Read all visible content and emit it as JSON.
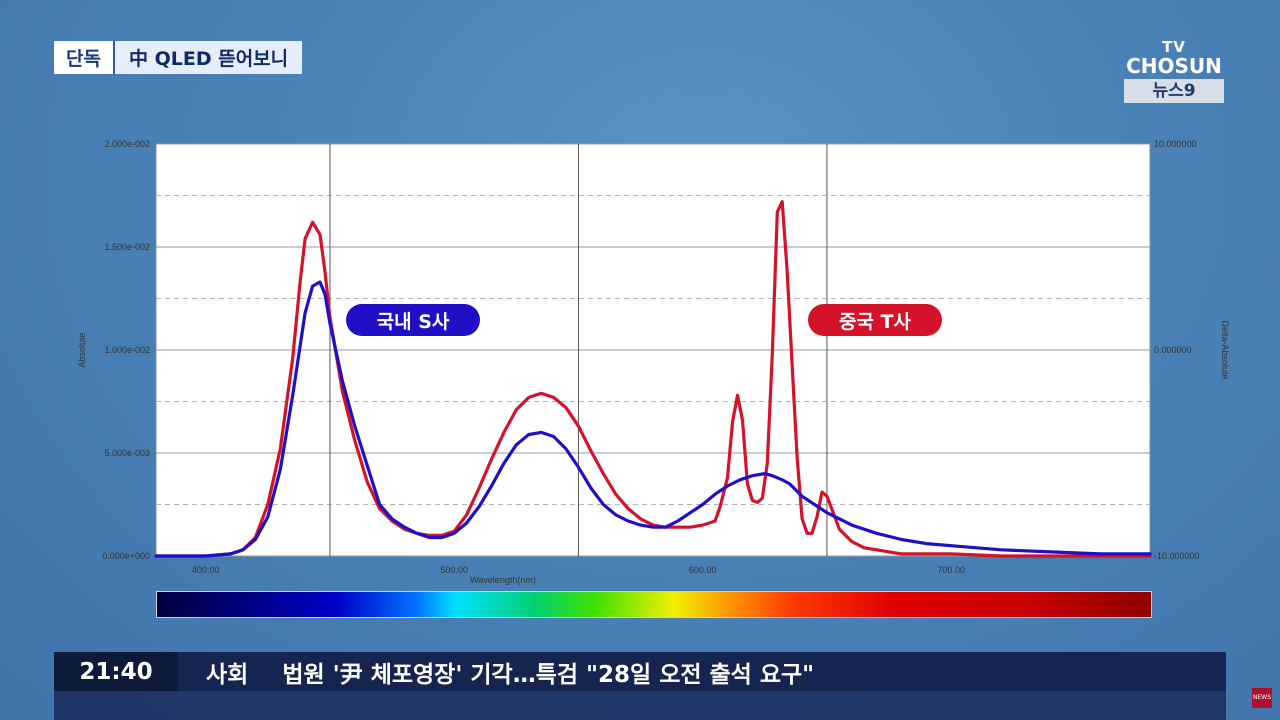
{
  "header": {
    "tag": "단독",
    "headline": "中 QLED 뜯어보니"
  },
  "logo": {
    "line1": "TV",
    "line2": "CHOSUN",
    "line3": "뉴스9"
  },
  "labels": {
    "korea": "국내 S사",
    "china": "중국 T사"
  },
  "colors": {
    "korea": "#1f10c8",
    "china": "#d4122a"
  },
  "ticker": {
    "time": "21:40",
    "category": "사회",
    "text": "법원 '尹 체포영장' 기각…특검 \"28일 오전 출석 요구\""
  },
  "corner_logo_text": "NEWS",
  "chart_data": {
    "type": "line",
    "xlabel": "Wavelength(nm)",
    "ylabel": "Absolute",
    "y2label": "Delta-Absolute",
    "xlim": [
      380,
      780
    ],
    "ylim": [
      0,
      0.02
    ],
    "y2lim": [
      -10,
      10
    ],
    "x_ticks": [
      400,
      500,
      600,
      700
    ],
    "x_tick_labels": [
      "400.00",
      "500.00",
      "600.00",
      "700.00"
    ],
    "y_ticks": [
      0,
      0.005,
      0.01,
      0.015,
      0.02
    ],
    "y_tick_labels": [
      "0.000e+000",
      "5.000e-003",
      "1.000e-002",
      "1.500e-002",
      "2.000e-002"
    ],
    "y2_ticks": [
      -10,
      0,
      10
    ],
    "y2_tick_labels": [
      "-10.000000",
      "0.000000",
      "10.000000"
    ],
    "grid": true,
    "series": [
      {
        "name": "국내 S사",
        "x": [
          380,
          400,
          410,
          415,
          420,
          425,
          430,
          435,
          440,
          443,
          446,
          448,
          450,
          455,
          460,
          465,
          470,
          475,
          480,
          485,
          490,
          495,
          500,
          505,
          510,
          515,
          520,
          525,
          530,
          535,
          540,
          545,
          550,
          555,
          560,
          565,
          570,
          575,
          580,
          585,
          590,
          595,
          600,
          605,
          610,
          615,
          620,
          625,
          628,
          632,
          635,
          640,
          645,
          650,
          660,
          670,
          680,
          690,
          700,
          720,
          740,
          760,
          780
        ],
        "y": [
          0,
          0,
          0.0001,
          0.0003,
          0.0008,
          0.0019,
          0.0042,
          0.0078,
          0.0118,
          0.0131,
          0.0133,
          0.0127,
          0.0113,
          0.0085,
          0.0063,
          0.0044,
          0.0025,
          0.0018,
          0.0014,
          0.0011,
          0.0009,
          0.0009,
          0.0011,
          0.0016,
          0.0024,
          0.0034,
          0.0045,
          0.0054,
          0.0059,
          0.006,
          0.0058,
          0.0052,
          0.0043,
          0.0033,
          0.0025,
          0.002,
          0.0017,
          0.0015,
          0.0014,
          0.0014,
          0.0017,
          0.0021,
          0.0025,
          0.003,
          0.0034,
          0.0037,
          0.0039,
          0.004,
          0.0039,
          0.0037,
          0.0035,
          0.0029,
          0.0025,
          0.0021,
          0.0015,
          0.0011,
          0.0008,
          0.0006,
          0.0005,
          0.0003,
          0.0002,
          0.0001,
          0.0001
        ]
      },
      {
        "name": "중국 T사",
        "x": [
          380,
          400,
          410,
          415,
          420,
          425,
          430,
          435,
          438,
          440,
          443,
          446,
          448,
          450,
          455,
          460,
          465,
          470,
          475,
          480,
          485,
          490,
          495,
          500,
          505,
          510,
          515,
          520,
          525,
          530,
          535,
          540,
          545,
          550,
          555,
          560,
          565,
          570,
          575,
          580,
          585,
          590,
          595,
          600,
          605,
          607,
          610,
          612,
          614,
          616,
          618,
          620,
          622,
          624,
          626,
          628,
          630,
          632,
          634,
          636,
          638,
          640,
          642,
          644,
          646,
          648,
          650,
          655,
          660,
          665,
          670,
          675,
          680,
          690,
          700,
          720,
          740,
          760,
          780
        ],
        "y": [
          0,
          0,
          0.0001,
          0.0003,
          0.0009,
          0.0025,
          0.0052,
          0.0096,
          0.0133,
          0.0154,
          0.0162,
          0.0156,
          0.0138,
          0.0116,
          0.008,
          0.0056,
          0.0036,
          0.0023,
          0.0017,
          0.0013,
          0.0011,
          0.001,
          0.001,
          0.0012,
          0.002,
          0.0033,
          0.0047,
          0.006,
          0.0071,
          0.0077,
          0.0079,
          0.0077,
          0.0072,
          0.0063,
          0.0051,
          0.004,
          0.003,
          0.0023,
          0.0018,
          0.0015,
          0.0014,
          0.0014,
          0.0014,
          0.0015,
          0.0017,
          0.0024,
          0.0038,
          0.0065,
          0.0078,
          0.0066,
          0.0035,
          0.0027,
          0.0026,
          0.0028,
          0.0045,
          0.0098,
          0.0167,
          0.0172,
          0.0138,
          0.0092,
          0.0048,
          0.0018,
          0.0011,
          0.0011,
          0.0019,
          0.0031,
          0.0029,
          0.0013,
          0.0007,
          0.0004,
          0.0003,
          0.0002,
          0.0001,
          0.0001,
          0.0001,
          0,
          0,
          0,
          0
        ]
      }
    ]
  }
}
